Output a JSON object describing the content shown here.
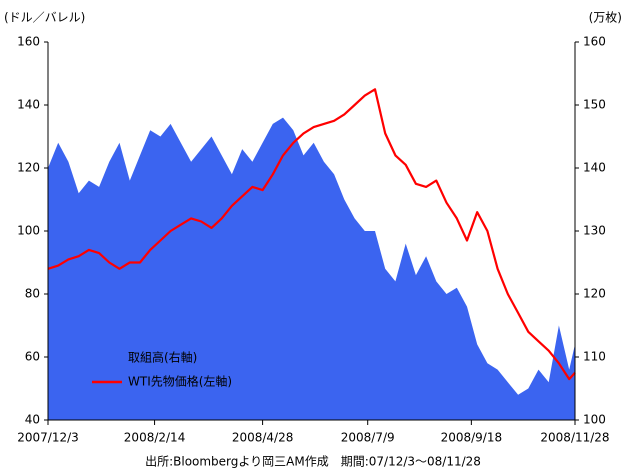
{
  "chart_data": {
    "type": "area-line",
    "ylabel": "(ドル／バレル)",
    "y2label": "(万枚)",
    "note": "出所:Bloombergより岡三AM作成　期間:07/12/3〜08/11/28",
    "x": [
      "2007/12/3",
      "2007/12/10",
      "2007/12/17",
      "2007/12/24",
      "2007/12/31",
      "2008/1/7",
      "2008/1/14",
      "2008/1/21",
      "2008/1/28",
      "2008/2/4",
      "2008/2/11",
      "2008/2/18",
      "2008/2/25",
      "2008/3/3",
      "2008/3/10",
      "2008/3/17",
      "2008/3/24",
      "2008/3/31",
      "2008/4/7",
      "2008/4/14",
      "2008/4/21",
      "2008/4/28",
      "2008/5/5",
      "2008/5/12",
      "2008/5/19",
      "2008/5/26",
      "2008/6/2",
      "2008/6/9",
      "2008/6/16",
      "2008/6/23",
      "2008/6/30",
      "2008/7/7",
      "2008/7/14",
      "2008/7/21",
      "2008/7/28",
      "2008/8/4",
      "2008/8/11",
      "2008/8/18",
      "2008/8/25",
      "2008/9/1",
      "2008/9/8",
      "2008/9/15",
      "2008/9/22",
      "2008/9/29",
      "2008/10/6",
      "2008/10/13",
      "2008/10/20",
      "2008/10/27",
      "2008/11/3",
      "2008/11/10",
      "2008/11/17",
      "2008/11/24",
      "2008/11/28"
    ],
    "series": [
      {
        "name": "取組高(右軸)",
        "color": "#3b64f0",
        "axis": "y2",
        "kind": "area",
        "values": [
          140,
          144,
          141,
          136,
          138,
          137,
          141,
          144,
          138,
          142,
          146,
          145,
          147,
          144,
          141,
          143,
          145,
          142,
          139,
          143,
          141,
          144,
          147,
          148,
          146,
          142,
          144,
          141,
          139,
          135,
          132,
          130,
          130,
          124,
          122,
          128,
          123,
          126,
          122,
          120,
          121,
          118,
          112,
          109,
          108,
          106,
          104,
          105,
          108,
          106,
          115,
          108,
          112
        ]
      },
      {
        "name": "WTI先物価格(左軸)",
        "color": "#ff0000",
        "kind": "line",
        "values": [
          88,
          89,
          91,
          92,
          94,
          93,
          90,
          88,
          90,
          90,
          94,
          97,
          100,
          102,
          104,
          103,
          101,
          104,
          108,
          111,
          114,
          113,
          118,
          124,
          128,
          131,
          133,
          134,
          135,
          137,
          140,
          143,
          145,
          131,
          124,
          121,
          115,
          114,
          116,
          109,
          104,
          97,
          106,
          100,
          88,
          80,
          74,
          68,
          65,
          62,
          58,
          53,
          55
        ]
      }
    ],
    "xticks": [
      "2007/12/3",
      "2008/2/14",
      "2008/4/28",
      "2008/7/9",
      "2008/9/18",
      "2008/11/28"
    ],
    "ylim": [
      40,
      160
    ],
    "yticks": [
      40,
      60,
      80,
      100,
      120,
      140,
      160
    ],
    "y2lim": [
      100,
      160
    ],
    "y2ticks": [
      100,
      110,
      120,
      130,
      140,
      150,
      160
    ]
  }
}
